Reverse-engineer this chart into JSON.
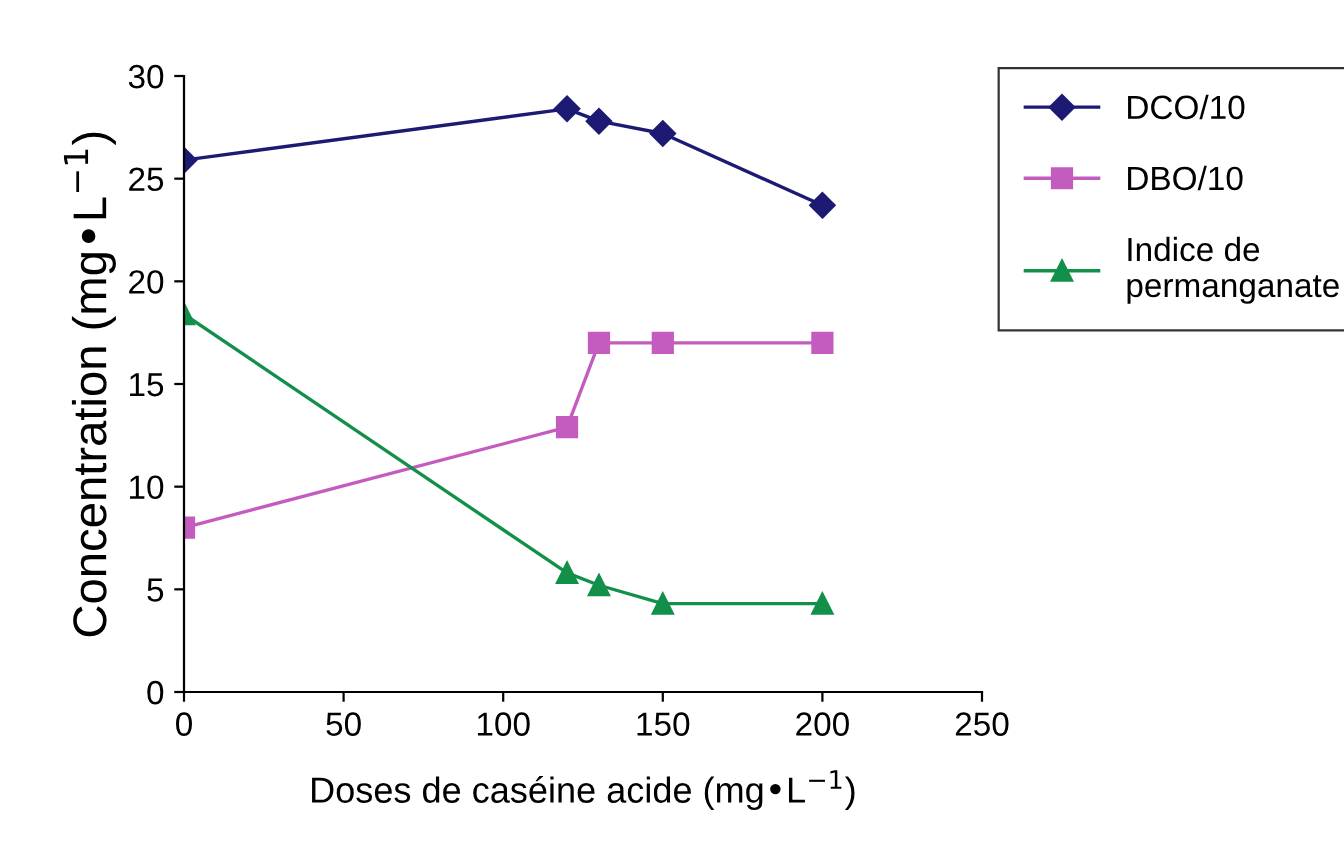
{
  "chart_data": {
    "type": "line",
    "xlabel": "Doses de caséine acide (mg•L$^{−1}$)",
    "ylabel": "Concentration (mg•L$^{−1}$)",
    "xlim": [
      0,
      250
    ],
    "xticks": [
      0,
      50,
      100,
      150,
      200,
      250
    ],
    "ylim": [
      0,
      30
    ],
    "yticks": [
      0,
      5,
      10,
      15,
      20,
      25,
      30
    ],
    "grid": false,
    "legend": "top right",
    "line_style": "solid",
    "series": [
      {
        "name": "DCO/10",
        "color": "#1c1a73",
        "marker": "diamond",
        "x": [
          0,
          120,
          130,
          150,
          200
        ],
        "values": [
          25.9,
          28.4,
          27.8,
          27.2,
          23.7
        ]
      },
      {
        "name": "DBO/10",
        "color": "#c45cc0",
        "marker": "square",
        "x": [
          0,
          120,
          130,
          150,
          200
        ],
        "values": [
          8.0,
          12.9,
          17.0,
          17.0,
          17.0
        ]
      },
      {
        "name": "Indice de\npermanganate",
        "color": "#12904a",
        "marker": "triangle",
        "x": [
          0,
          120,
          130,
          150,
          200
        ],
        "values": [
          18.4,
          5.8,
          5.2,
          4.3,
          4.3
        ]
      }
    ]
  }
}
